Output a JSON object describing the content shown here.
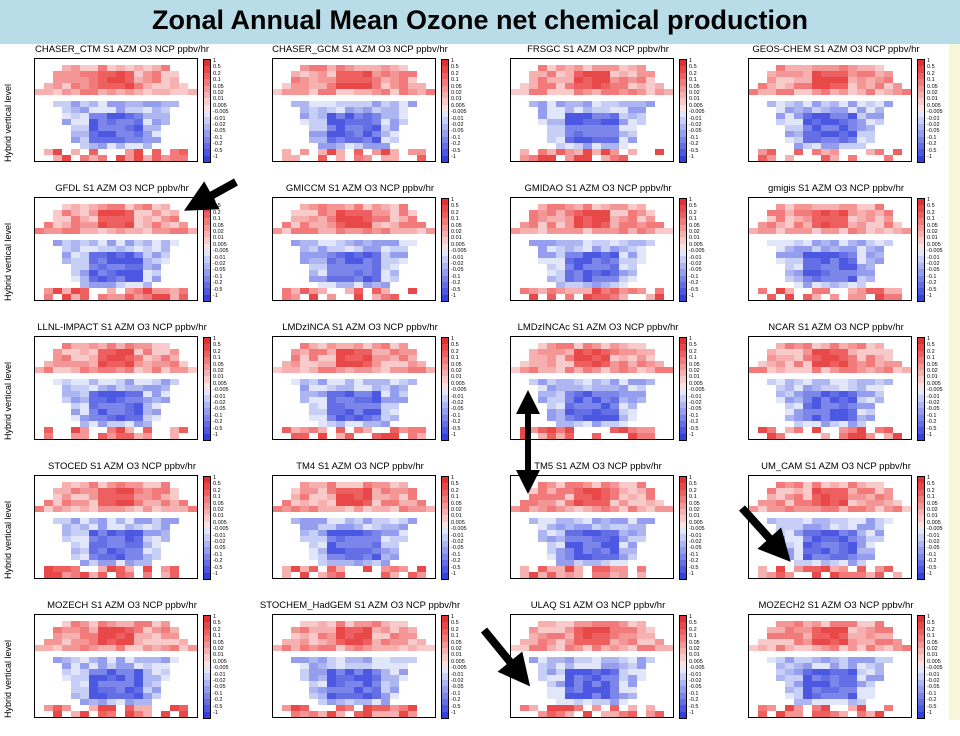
{
  "page": {
    "title": "Zonal Annual Mean Ozone net chemical production",
    "row_axis_label": "Hybrid vertical level"
  },
  "colorbar": {
    "labels": [
      "1",
      "0.5",
      "0.2",
      "0.1",
      "0.05",
      "0.02",
      "0.01",
      "0.005",
      "-0.005",
      "-0.01",
      "-0.02",
      "-0.05",
      "-0.1",
      "-0.2",
      "-0.5",
      "-1"
    ],
    "colors": [
      "#e03030",
      "#e84848",
      "#ee6060",
      "#f27a7a",
      "#f59696",
      "#f7b0b0",
      "#f9caca",
      "#fbe2e2",
      "#e2e6fb",
      "#c8cff6",
      "#aeb6f2",
      "#959eee",
      "#7c86ea",
      "#646fe6",
      "#4c58e2",
      "#3240dc"
    ]
  },
  "colors": {
    "title_bar": "#b9dde8",
    "right_strip": "#f6f6d8",
    "arrow": "#000000"
  },
  "chart_data": {
    "type": "heatmap",
    "title": "Zonal Annual Mean Ozone net chemical production",
    "ylabel": "Hybrid vertical level",
    "units": "ppbv/hr",
    "panels": [
      {
        "title": "CHASER_CTM S1 AZM O3 NCP ppbv/hr"
      },
      {
        "title": "CHASER_GCM S1 AZM O3 NCP ppbv/hr"
      },
      {
        "title": "FRSGC S1 AZM O3 NCP ppbv/hr"
      },
      {
        "title": "GEOS-CHEM S1 AZM O3 NCP ppbv/hr"
      },
      {
        "title": "GFDL S1 AZM O3 NCP ppbv/hr"
      },
      {
        "title": "GMICCM S1 AZM O3 NCP ppbv/hr"
      },
      {
        "title": "GMIDAO S1 AZM O3 NCP ppbv/hr"
      },
      {
        "title": "gmigis S1 AZM O3 NCP ppbv/hr"
      },
      {
        "title": "LLNL-IMPACT S1 AZM O3 NCP ppbv/hr"
      },
      {
        "title": "LMDzINCA S1 AZM O3 NCP ppbv/hr"
      },
      {
        "title": "LMDzINCAc S1 AZM O3 NCP ppbv/hr"
      },
      {
        "title": "NCAR S1 AZM O3 NCP ppbv/hr"
      },
      {
        "title": "STOCED S1 AZM O3 NCP ppbv/hr"
      },
      {
        "title": "TM4 S1 AZM O3 NCP ppbv/hr"
      },
      {
        "title": "TM5 S1 AZM O3 NCP ppbv/hr"
      },
      {
        "title": "UM_CAM S1 AZM O3 NCP ppbv/hr"
      },
      {
        "title": "MOZECH S1 AZM O3 NCP ppbv/hr"
      },
      {
        "title": "STOCHEM_HadGEM S1 AZM O3 NCP ppbv/hr"
      },
      {
        "title": "ULAQ S1 AZM O3 NCP ppbv/hr"
      },
      {
        "title": "MOZECH2 S1 AZM O3 NCP ppbv/hr"
      }
    ]
  }
}
